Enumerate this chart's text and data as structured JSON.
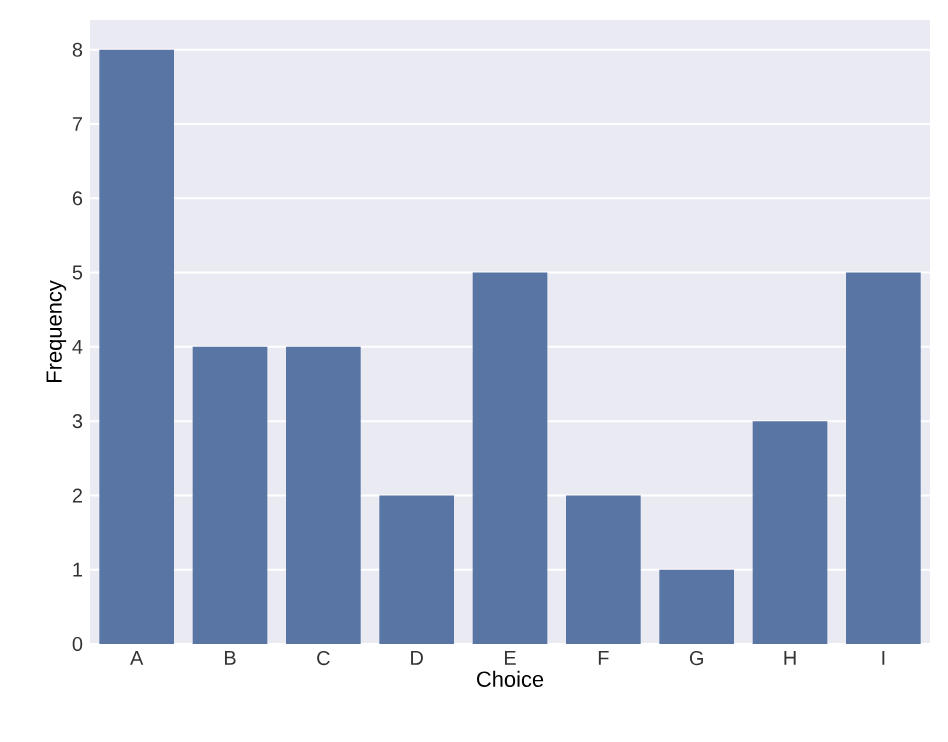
{
  "chart_data": {
    "type": "bar",
    "xlabel": "Choice",
    "ylabel": "Frequency",
    "categories": [
      "A",
      "B",
      "C",
      "D",
      "E",
      "F",
      "G",
      "H",
      "I"
    ],
    "values": [
      8,
      4,
      4,
      2,
      5,
      2,
      1,
      3,
      5
    ],
    "color": "#5975a4",
    "ylim": [
      0,
      8.4
    ],
    "yticks": [
      0,
      1,
      2,
      3,
      4,
      5,
      6,
      7,
      8
    ],
    "grid": "y"
  }
}
